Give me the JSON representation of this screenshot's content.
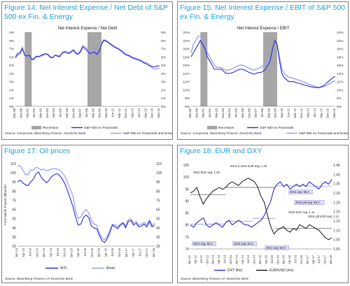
{
  "colors": {
    "title": "#1f9fd6",
    "recession": "#a6a6a6",
    "dark_series": "#2b2bcc",
    "light_series": "#9aa0f0",
    "black_series": "#111111"
  },
  "panels": [
    {
      "title": "Figure 14: Net Interest Expense / Net Debt of S&P 500 ex Fin. & Energy",
      "source": "Source: Compustat, Bloomberg Finance, Deutsche Bank"
    },
    {
      "title": "Figure 15: Net Interest Expense / EBIT of S&P 500 ex Fin. & Energy",
      "source": "Source: Compustat, Bloomberg Finance, Deutsche Bank"
    },
    {
      "title": "Figure 17: Oil prices",
      "source": "Source: Bloomberg Finance LP, Deutsche Bank"
    },
    {
      "title": "Figure 18: EUR and DXY",
      "source": "Source: Bloomberg Finance LP, Deutsche Bank"
    }
  ],
  "chart_data": [
    {
      "type": "line",
      "title": "Net Interest Expense / Net Debt",
      "ylim": [
        0,
        9
      ],
      "yticks": [
        "0%",
        "1%",
        "2%",
        "3%",
        "4%",
        "5%",
        "6%",
        "7%",
        "8%",
        "9%"
      ],
      "xticks": [
        "Mar-00",
        "Dec-00",
        "Sep-01",
        "Jun-02",
        "Mar-03",
        "Dec-03",
        "Sep-04",
        "Jun-05",
        "Mar-06",
        "Dec-06",
        "Sep-07",
        "Jun-08",
        "Mar-09",
        "Dec-09",
        "Sep-10",
        "Jun-11",
        "Mar-12",
        "Dec-12",
        "Sep-13",
        "Jun-14",
        "Mar-15",
        "Dec-15",
        "Sep-16"
      ],
      "recessions": [
        [
          4,
          7
        ],
        [
          31,
          37
        ]
      ],
      "series": [
        {
          "name": "S&P 500 ex Financials",
          "values": [
            5.9,
            6.3,
            6.4,
            7.0,
            6.2,
            6.1,
            6.2,
            5.7,
            5.8,
            6.1,
            6.0,
            6.2,
            6.3,
            6.4,
            6.3,
            6.0,
            5.9,
            6.2,
            6.1,
            6.0,
            6.4,
            6.6,
            6.5,
            6.4,
            6.6,
            6.8,
            6.4,
            6.3,
            6.6,
            7.2,
            7.0,
            6.7,
            6.4,
            6.5,
            6.6,
            6.3,
            6.6,
            7.5,
            8.0,
            7.9,
            7.7,
            7.5,
            7.3,
            7.1,
            7.0,
            6.8,
            6.6,
            6.3,
            6.2,
            6.1,
            5.9,
            5.8,
            5.7,
            5.6,
            5.5,
            5.3,
            5.2,
            5.0,
            4.9,
            4.8,
            4.8,
            4.9,
            4.9
          ]
        },
        {
          "name": "S&P 500 ex Financials and Energy",
          "values": [
            6.0,
            6.5,
            6.6,
            7.2,
            6.2,
            6.0,
            6.1,
            5.6,
            5.7,
            6.0,
            6.0,
            6.1,
            6.2,
            6.4,
            6.2,
            5.9,
            5.9,
            6.2,
            6.2,
            6.1,
            6.5,
            6.7,
            6.6,
            6.5,
            6.7,
            6.9,
            6.5,
            6.4,
            6.8,
            7.4,
            7.2,
            6.9,
            6.6,
            6.7,
            6.8,
            6.5,
            6.7,
            7.7,
            8.1,
            8.0,
            7.8,
            7.6,
            7.4,
            7.2,
            7.1,
            6.9,
            6.7,
            6.5,
            6.3,
            6.2,
            6.0,
            5.9,
            5.8,
            5.7,
            5.6,
            5.4,
            5.3,
            5.2,
            5.0,
            4.6,
            4.5,
            4.6,
            4.6
          ]
        }
      ],
      "legend": [
        "Recession",
        "S&P 500 ex Financials",
        "S&P 500 ex Financials and Energy"
      ]
    },
    {
      "type": "line",
      "title": "Net Interest Expense / EBIT",
      "ylim": [
        6,
        24
      ],
      "yticks": [
        "6%",
        "8%",
        "10%",
        "12%",
        "14%",
        "16%",
        "18%",
        "20%",
        "22%",
        "24%"
      ],
      "xticks": [
        "Mar-00",
        "Dec-00",
        "Sep-01",
        "Jun-02",
        "Mar-03",
        "Dec-03",
        "Sep-04",
        "Jun-05",
        "Mar-06",
        "Dec-06",
        "Sep-07",
        "Jun-08",
        "Mar-09",
        "Dec-09",
        "Sep-10",
        "Jun-11",
        "Mar-12",
        "Dec-12",
        "Sep-13",
        "Jun-14",
        "Mar-15",
        "Dec-15",
        "Sep-16"
      ],
      "recessions": [
        [
          4,
          7
        ],
        [
          31,
          37
        ]
      ],
      "series": [
        {
          "name": "S&P 500 ex Financials",
          "values": [
            18,
            19,
            20,
            21,
            22,
            21,
            20,
            18,
            17,
            16,
            15,
            15,
            15,
            15,
            14.5,
            14,
            14,
            14,
            14.2,
            14.5,
            14.8,
            15,
            15,
            14.8,
            14.5,
            14.2,
            14,
            13.8,
            14,
            14.2,
            14.2,
            14.5,
            15,
            16,
            17,
            20,
            22,
            21,
            17,
            14,
            13,
            12.5,
            12,
            12,
            12,
            11.8,
            11.6,
            11.5,
            11.3,
            11.1,
            11,
            10.8,
            10.7,
            10.6,
            10.5,
            10.5,
            10.8,
            11,
            11.5,
            12,
            12.5,
            13,
            13.2
          ]
        },
        {
          "name": "S&P 500 ex Financials and Energy",
          "values": [
            19,
            21,
            22,
            23,
            23,
            22,
            21,
            19,
            18,
            17,
            16,
            15.5,
            15.5,
            15.3,
            15,
            14.8,
            14.8,
            15,
            15.2,
            15.5,
            15.8,
            16,
            16,
            15.8,
            15.5,
            15.2,
            15,
            14.8,
            15,
            15.2,
            15.5,
            16,
            16.5,
            17,
            18,
            20,
            22,
            21,
            18,
            15,
            14,
            13.5,
            13,
            13,
            12.8,
            12.6,
            12.4,
            12.2,
            12,
            11.8,
            11.5,
            11.3,
            11.1,
            10.9,
            10.7,
            10.6,
            10.6,
            10.8,
            11,
            11.3,
            11.6,
            12,
            12.2
          ]
        }
      ],
      "legend": [
        "Recession",
        "S&P 500 ex Financials",
        "S&P 500 ex Financials and Energy"
      ]
    },
    {
      "type": "line",
      "ylabel": "Front Month Futures ($/barrel)",
      "ylim": [
        25,
        115
      ],
      "yticks": [
        "25",
        "35",
        "45",
        "55",
        "65",
        "75",
        "85",
        "95",
        "105",
        "115"
      ],
      "xticks": [
        "Jan-13",
        "Apr-13",
        "Jul-13",
        "Oct-13",
        "Jan-14",
        "Apr-14",
        "Jul-14",
        "Oct-14",
        "Jan-15",
        "Apr-15",
        "Jul-15",
        "Oct-15",
        "Jan-16",
        "Apr-16",
        "Jul-16",
        "Oct-16",
        "Jan-17",
        "Apr-17",
        "Jul-17",
        "Oct-17",
        "Jan-18"
      ],
      "series": [
        {
          "name": "WTI",
          "values": [
            95,
            97,
            94,
            92,
            91,
            95,
            98,
            104,
            106,
            100,
            97,
            94,
            97,
            101,
            103,
            104,
            102,
            98,
            93,
            85,
            77,
            68,
            57,
            48,
            49,
            56,
            59,
            56,
            47,
            45,
            44,
            37,
            31,
            29,
            33,
            40,
            48,
            46,
            44,
            48,
            50,
            45,
            52,
            53,
            48,
            50,
            46,
            47,
            49,
            46,
            52,
            46,
            48
          ]
        },
        {
          "name": "Brent",
          "values": [
            112,
            113,
            108,
            103,
            103,
            108,
            108,
            111,
            110,
            108,
            109,
            107,
            108,
            109,
            110,
            109,
            108,
            105,
            101,
            94,
            87,
            80,
            64,
            55,
            57,
            62,
            65,
            61,
            53,
            49,
            48,
            40,
            34,
            32,
            36,
            42,
            49,
            48,
            46,
            49,
            51,
            47,
            54,
            55,
            50,
            52,
            48,
            49,
            51,
            48,
            54,
            48,
            50
          ]
        }
      ],
      "legend": [
        "WTI",
        "Brent"
      ]
    },
    {
      "type": "line",
      "ylim_left": [
        70,
        105
      ],
      "yticks_left": [
        "70",
        "75",
        "80",
        "85",
        "90",
        "95",
        "100",
        "105"
      ],
      "ylim_right": [
        1.0,
        1.45
      ],
      "yticks_right": [
        "1.00",
        "1.05",
        "1.10",
        "1.15",
        "1.20",
        "1.25",
        "1.30",
        "1.35",
        "1.40",
        "1.45"
      ],
      "xticks": [
        "Jan-12",
        "Apr-12",
        "Jul-12",
        "Oct-12",
        "Jan-13",
        "Apr-13",
        "Jul-13",
        "Oct-13",
        "Jan-14",
        "Apr-14",
        "Jul-14",
        "Oct-14",
        "Jan-15",
        "Apr-15",
        "Jul-15",
        "Oct-15",
        "Jan-16",
        "Apr-16",
        "Jul-16",
        "Oct-16",
        "Jan-17",
        "Apr-17",
        "Jul-17",
        "Oct-17",
        "Jan-18"
      ],
      "series": [
        {
          "name": "DXY (lhs)",
          "values": [
            80,
            79,
            81,
            82,
            83,
            80,
            79,
            80,
            81,
            80,
            79,
            81,
            82,
            80,
            81,
            82,
            81,
            80,
            80,
            79,
            80,
            81,
            82,
            84,
            87,
            90,
            95,
            97,
            98,
            96,
            97,
            95,
            96,
            97,
            96,
            97,
            96,
            98,
            97,
            96,
            95,
            97,
            98,
            97,
            99
          ]
        },
        {
          "name": "EUR/USD (rhs)",
          "values": [
            1.3,
            1.31,
            1.33,
            1.28,
            1.24,
            1.27,
            1.29,
            1.31,
            1.32,
            1.33,
            1.32,
            1.33,
            1.35,
            1.36,
            1.35,
            1.34,
            1.36,
            1.37,
            1.38,
            1.37,
            1.36,
            1.33,
            1.28,
            1.25,
            1.18,
            1.12,
            1.08,
            1.1,
            1.11,
            1.12,
            1.1,
            1.09,
            1.11,
            1.1,
            1.13,
            1.12,
            1.11,
            1.13,
            1.12,
            1.11,
            1.1,
            1.08,
            1.06,
            1.05,
            1.06
          ]
        }
      ],
      "annotations": [
        "2012 EUR avg: 1.29",
        "2013 & 2014 EUR avg: 1.33",
        "2015 avg: 96.3",
        "2016 ytd avg: 96.2",
        "2015 EUR avg: 1.11",
        "2016 ytd EUR avg: 1.11",
        "2012 avg: 80.4",
        "2013 avg: 81.6",
        "2014 avg: 82.8"
      ],
      "legend": [
        "DXY (lhs)",
        "EUR/USD (rhs)"
      ]
    }
  ]
}
